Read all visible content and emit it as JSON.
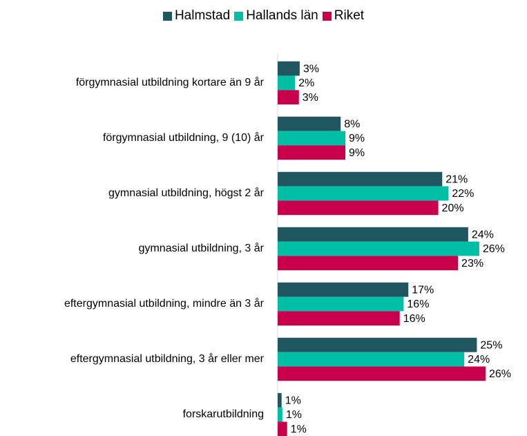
{
  "chart_data": {
    "type": "barh",
    "categories": [
      "förgymnasial utbildning kortare än 9 år",
      "förgymnasial utbildning, 9 (10) år",
      "gymnasial utbildning, högst 2 år",
      "gymnasial utbildning, 3 år",
      "eftergymnasial utbildning, mindre än 3 år",
      "eftergymnasial utbildning, 3 år eller mer",
      "forskarutbildning"
    ],
    "series": [
      {
        "name": "Halmstad",
        "color": "#1f5660",
        "values": [
          2.8,
          8.0,
          20.9,
          24.2,
          16.6,
          25.3,
          0.5
        ],
        "value_labels": [
          "3%",
          "8%",
          "21%",
          "24%",
          "17%",
          "25%",
          "1%"
        ]
      },
      {
        "name": "Hallands län",
        "color": "#00bfa5",
        "values": [
          2.2,
          8.6,
          21.7,
          25.6,
          16.0,
          23.7,
          0.6
        ],
        "value_labels": [
          "2%",
          "9%",
          "22%",
          "26%",
          "16%",
          "24%",
          "1%"
        ]
      },
      {
        "name": "Riket",
        "color": "#c8004b",
        "values": [
          2.7,
          8.6,
          20.4,
          22.9,
          15.5,
          26.4,
          1.2
        ],
        "value_labels": [
          "3%",
          "9%",
          "20%",
          "23%",
          "16%",
          "26%",
          "1%"
        ]
      }
    ],
    "legend": "top"
  }
}
